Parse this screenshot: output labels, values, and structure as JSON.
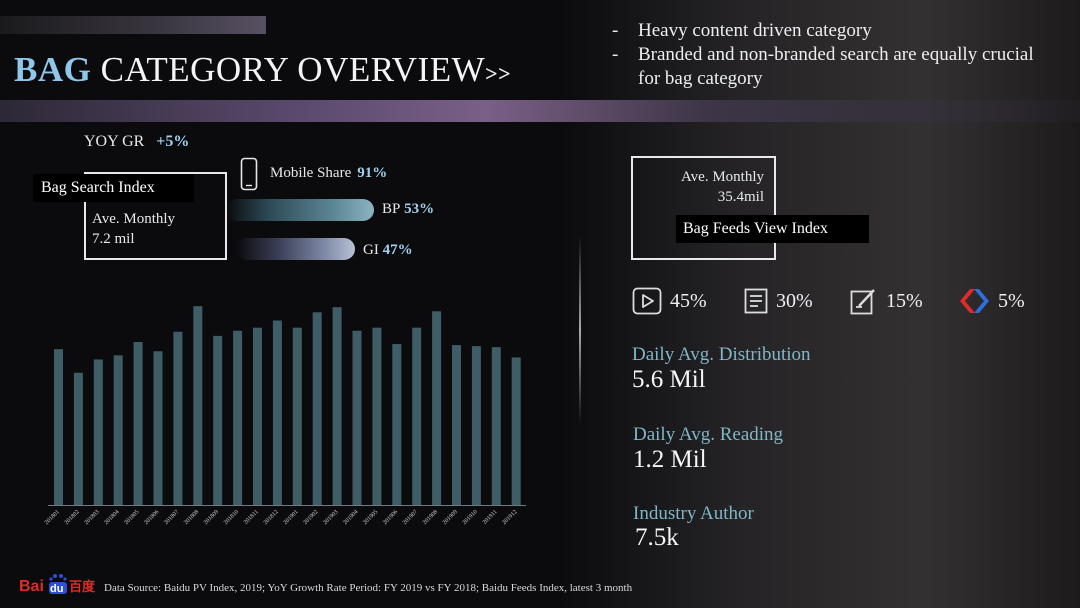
{
  "title": {
    "accent": "BAG",
    "rest": " CATEGORY OVERVIEW",
    "arrows": ">>"
  },
  "bullets": [
    "Heavy content driven category",
    "Branded and non-branded search are equally crucial for bag category"
  ],
  "search": {
    "yoy_label": "YOY GR",
    "yoy_value": "+5%",
    "label": "Bag Search Index",
    "avg_title": "Ave. Monthly",
    "avg_value": "7.2 mil",
    "mobile_label": "Mobile Share",
    "mobile_value": "91%",
    "bp_label": "BP",
    "bp_value": "53%",
    "gi_label": "GI",
    "gi_value": "47%"
  },
  "feeds": {
    "avg_title": "Ave. Monthly",
    "avg_value": "35.4mil",
    "label": "Bag Feeds View Index",
    "shares": [
      {
        "icon": "video-play-icon",
        "value": "45%"
      },
      {
        "icon": "article-icon",
        "value": "30%"
      },
      {
        "icon": "edit-note-icon",
        "value": "15%"
      },
      {
        "icon": "red-blue-chevron-logo-icon",
        "value": "5%"
      }
    ]
  },
  "stats": [
    {
      "label": "Daily Avg. Distribution",
      "value": "5.6 Mil"
    },
    {
      "label": "Daily Avg. Reading",
      "value": "1.2 Mil"
    },
    {
      "label": "Industry Author",
      "value": "7.5k"
    }
  ],
  "footer": "Data Source: Baidu PV Index, 2019; YoY Growth Rate Period: FY 2019 vs FY 2018; Baidu Feeds Index, latest 3 month",
  "logo_text": "Bai du 百度",
  "chart_data": {
    "type": "bar",
    "categories": [
      "201801",
      "201802",
      "201803",
      "201804",
      "201805",
      "201806",
      "201807",
      "201808",
      "201809",
      "201810",
      "201811",
      "201812",
      "201901",
      "201902",
      "201903",
      "201904",
      "201905",
      "201906",
      "201907",
      "201908",
      "201909",
      "201910",
      "201911",
      "201912"
    ],
    "values": [
      152,
      129,
      142,
      146,
      159,
      150,
      169,
      194,
      165,
      170,
      173,
      180,
      173,
      188,
      193,
      170,
      173,
      157,
      173,
      189,
      156,
      155,
      154,
      144
    ],
    "ylim": [
      0,
      200
    ],
    "bar_color": "#3f5d66"
  }
}
